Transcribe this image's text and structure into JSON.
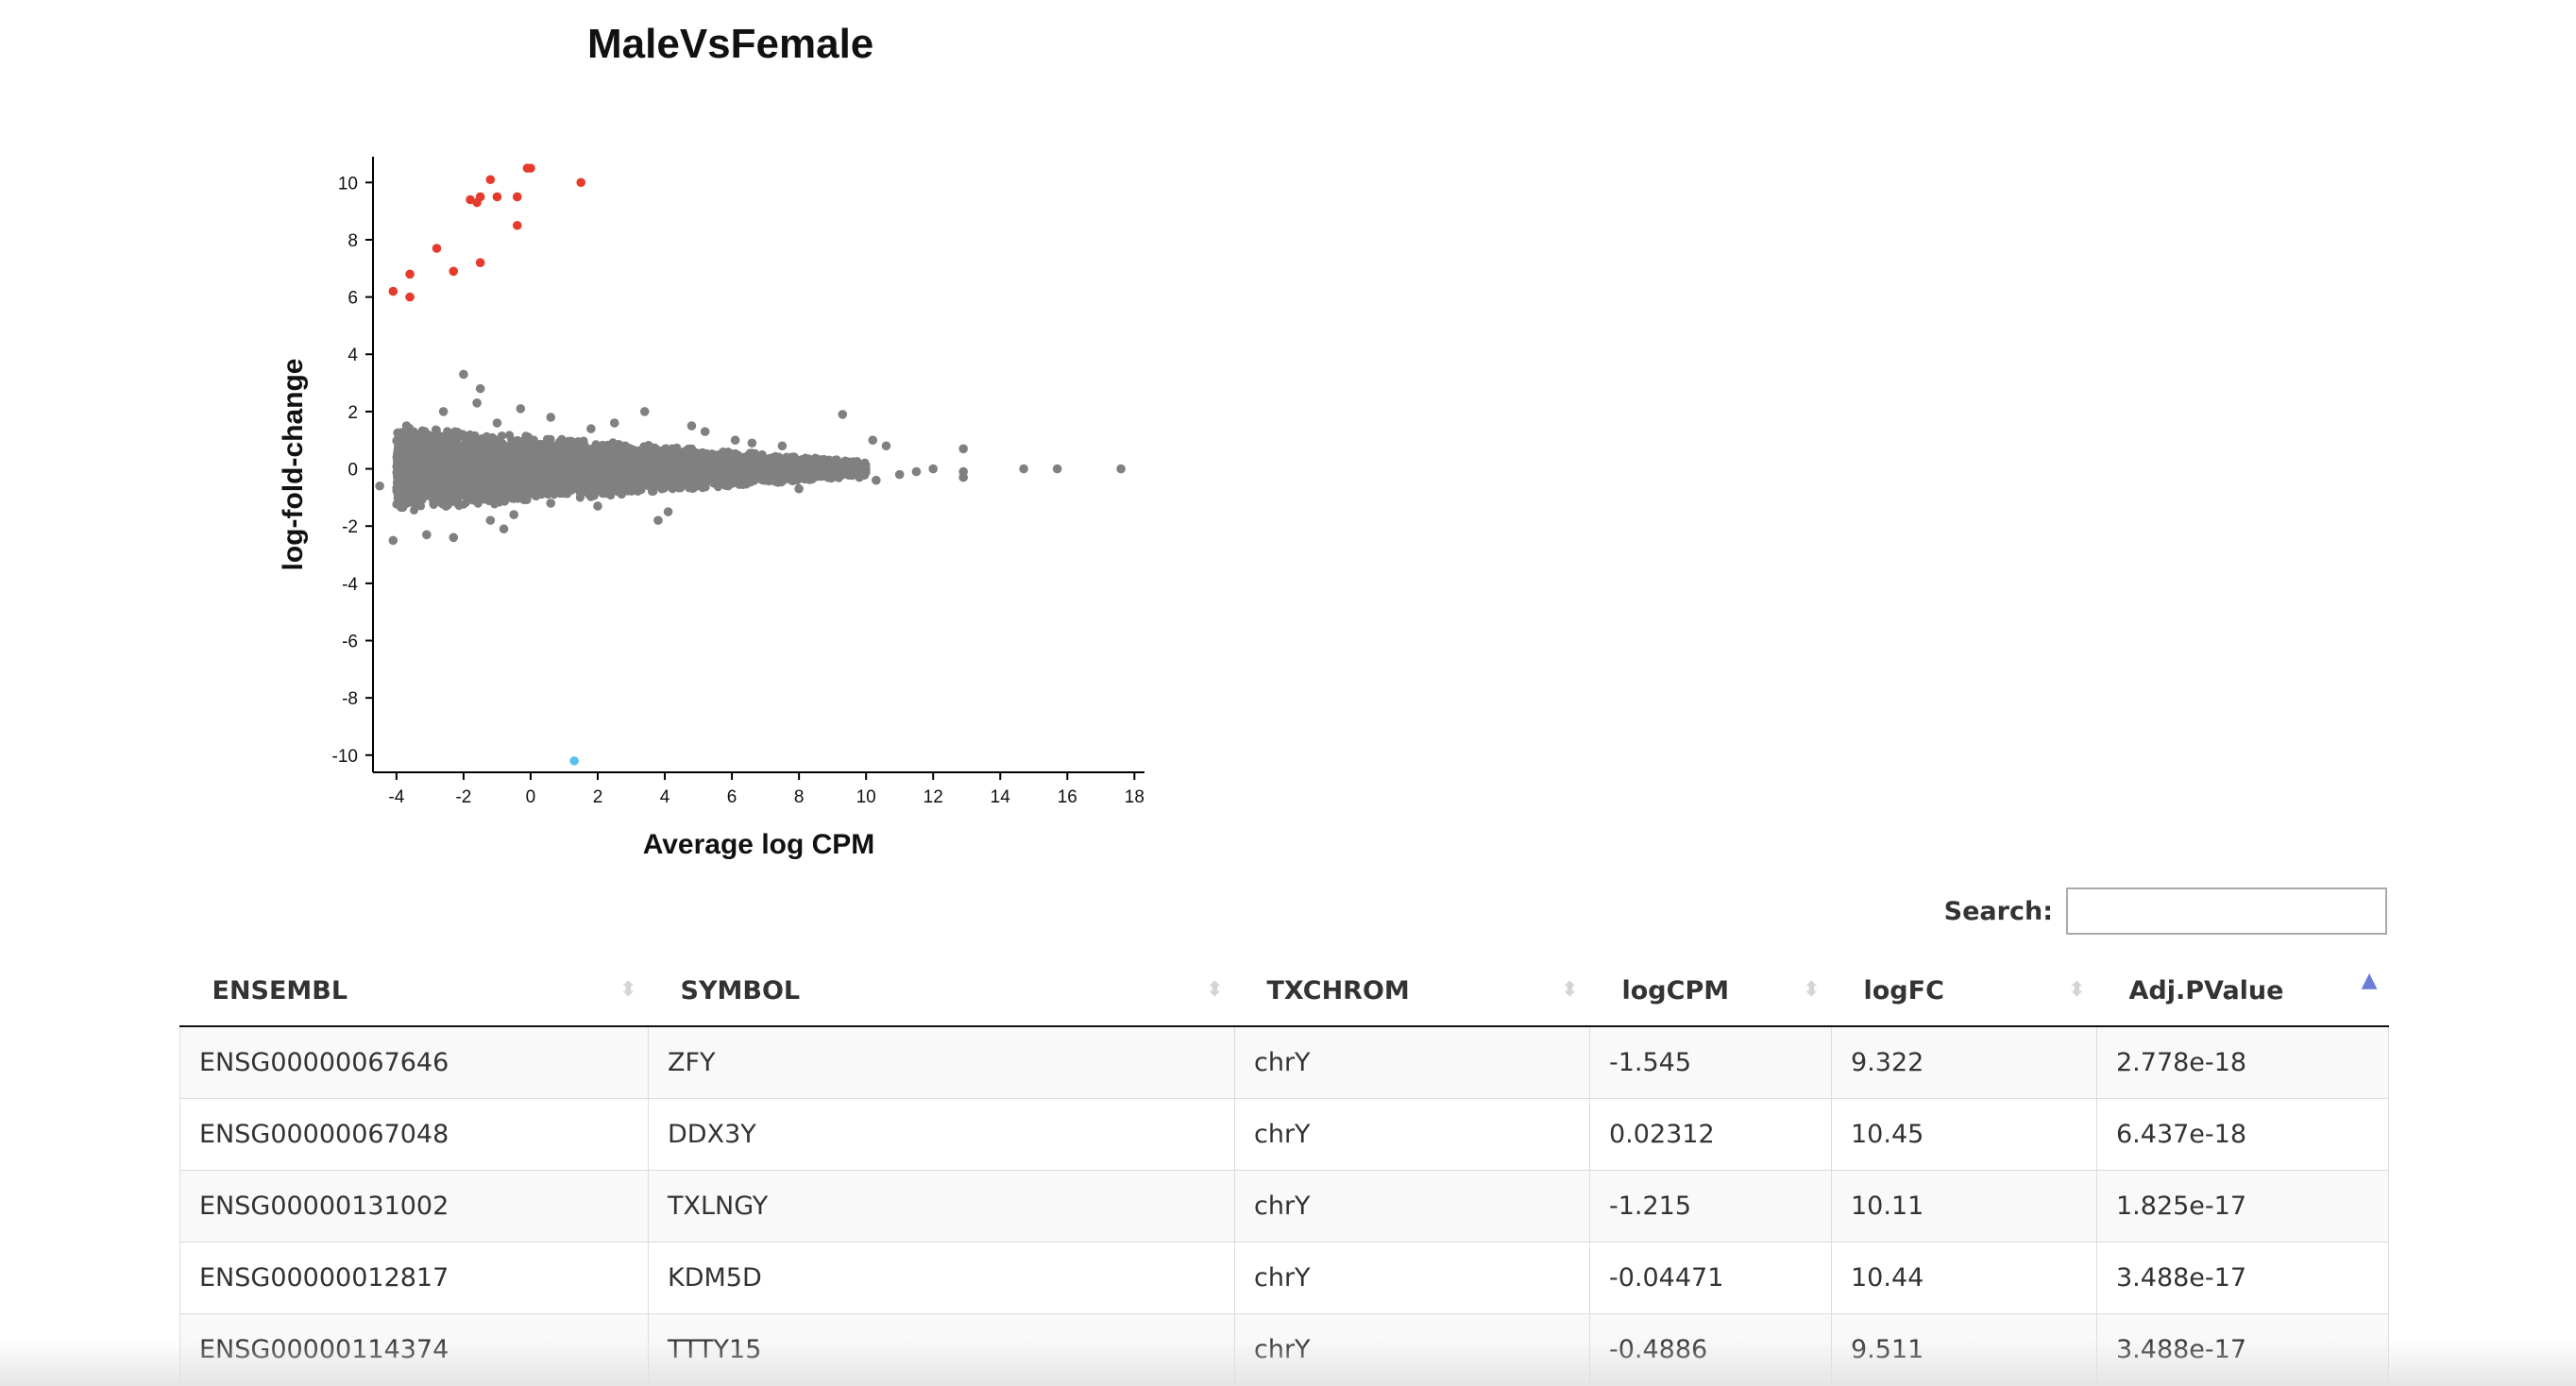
{
  "chart_data": {
    "type": "scatter",
    "title": "MaleVsFemale",
    "xlabel": "Average log CPM",
    "ylabel": "log-fold-change",
    "xlim": [
      -4.7,
      18.3
    ],
    "ylim": [
      -10.6,
      10.9
    ],
    "xticks": [
      -4,
      -2,
      0,
      2,
      4,
      6,
      8,
      10,
      12,
      14,
      16,
      18
    ],
    "yticks": [
      -10,
      -8,
      -6,
      -4,
      -2,
      0,
      2,
      4,
      6,
      8,
      10
    ],
    "series": [
      {
        "status": "up",
        "color": "#e53b2c",
        "points": [
          [
            -4.1,
            6.2
          ],
          [
            -3.6,
            6.8
          ],
          [
            -3.6,
            6.0
          ],
          [
            -2.8,
            7.7
          ],
          [
            -2.3,
            6.9
          ],
          [
            -1.8,
            9.4
          ],
          [
            -1.6,
            9.3
          ],
          [
            -1.5,
            9.5
          ],
          [
            -1.5,
            7.2
          ],
          [
            -1.2,
            10.1
          ],
          [
            -1.0,
            9.5
          ],
          [
            -0.4,
            9.5
          ],
          [
            -0.4,
            8.5
          ],
          [
            -0.1,
            10.5
          ],
          [
            0.0,
            10.5
          ],
          [
            1.5,
            10.0
          ]
        ]
      },
      {
        "status": "down",
        "color": "#5bc0eb",
        "points": [
          [
            1.3,
            -10.2
          ]
        ]
      },
      {
        "status": "not significant",
        "color": "#808080",
        "points": [
          [
            -2.0,
            3.3
          ],
          [
            -1.5,
            2.8
          ],
          [
            -1.6,
            2.3
          ],
          [
            -0.3,
            2.1
          ],
          [
            3.4,
            2.0
          ],
          [
            9.3,
            1.9
          ],
          [
            10.2,
            1.0
          ],
          [
            10.6,
            0.8
          ],
          [
            12.9,
            0.7
          ],
          [
            12.9,
            -0.1
          ],
          [
            12.9,
            -0.3
          ],
          [
            12.0,
            0.0
          ],
          [
            11.5,
            -0.1
          ],
          [
            14.7,
            0.0
          ],
          [
            15.7,
            0.0
          ],
          [
            17.6,
            0.0
          ],
          [
            -4.1,
            -2.5
          ],
          [
            -3.1,
            -2.3
          ],
          [
            -2.3,
            -2.4
          ],
          [
            -1.2,
            -1.8
          ],
          [
            -0.8,
            -2.1
          ],
          [
            -0.5,
            -1.6
          ],
          [
            0.6,
            -1.2
          ],
          [
            2.0,
            -1.3
          ],
          [
            3.8,
            -1.8
          ],
          [
            4.1,
            -1.5
          ],
          [
            2.5,
            1.6
          ],
          [
            4.8,
            1.5
          ],
          [
            5.2,
            1.3
          ],
          [
            6.1,
            1.0
          ],
          [
            6.6,
            0.9
          ],
          [
            7.5,
            0.8
          ],
          [
            8.0,
            -0.7
          ],
          [
            9.8,
            -0.3
          ],
          [
            10.3,
            -0.4
          ],
          [
            11.0,
            -0.2
          ],
          [
            -3.9,
            -0.8
          ],
          [
            -4.5,
            -0.6
          ],
          [
            -2.6,
            2.0
          ],
          [
            -3.7,
            1.5
          ],
          [
            0.6,
            1.8
          ],
          [
            1.8,
            1.4
          ],
          [
            -1.0,
            1.6
          ]
        ],
        "bulk": {
          "n": 9000,
          "x_range": [
            -4,
            10
          ],
          "spread_at_low_cpm": 1.5,
          "spread_at_high_cpm": 0.25
        }
      }
    ]
  },
  "search": {
    "label": "Search:",
    "value": "",
    "placeholder": ""
  },
  "table": {
    "columns": [
      {
        "label": "ENSEMBL",
        "sort": "none"
      },
      {
        "label": "SYMBOL",
        "sort": "none"
      },
      {
        "label": "TXCHROM",
        "sort": "none"
      },
      {
        "label": "logCPM",
        "sort": "none"
      },
      {
        "label": "logFC",
        "sort": "none"
      },
      {
        "label": "Adj.PValue",
        "sort": "asc"
      }
    ],
    "rows": [
      [
        "ENSG00000067646",
        "ZFY",
        "chrY",
        "-1.545",
        "9.322",
        "2.778e-18"
      ],
      [
        "ENSG00000067048",
        "DDX3Y",
        "chrY",
        "0.02312",
        "10.45",
        "6.437e-18"
      ],
      [
        "ENSG00000131002",
        "TXLNGY",
        "chrY",
        "-1.215",
        "10.11",
        "1.825e-17"
      ],
      [
        "ENSG00000012817",
        "KDM5D",
        "chrY",
        "-0.04471",
        "10.44",
        "3.488e-17"
      ],
      [
        "ENSG00000114374",
        "TTTY15",
        "chrY",
        "-0.4886",
        "9.511",
        "3.488e-17"
      ]
    ]
  }
}
